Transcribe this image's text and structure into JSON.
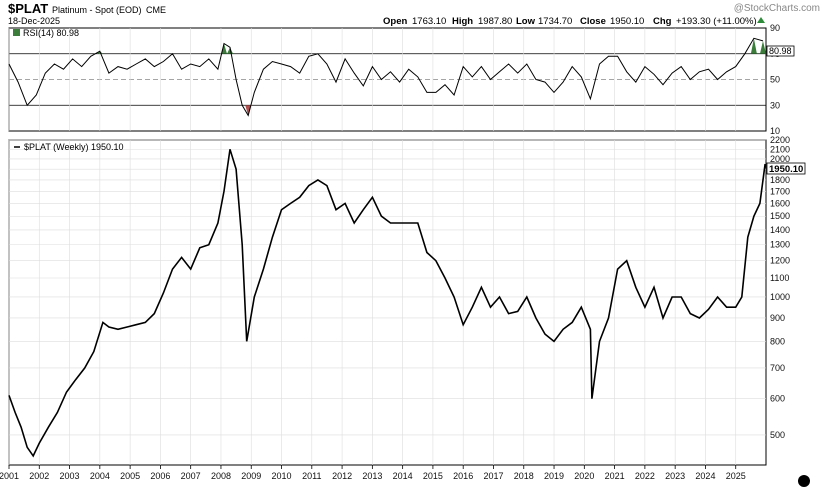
{
  "header": {
    "symbol": "$PLAT",
    "name": "Platinum - Spot (EOD)",
    "exchange": "CME",
    "date": "18-Dec-2025",
    "open_label": "Open",
    "open": "1763.10",
    "high_label": "High",
    "high": "1987.80",
    "low_label": "Low",
    "low": "1734.70",
    "close_label": "Close",
    "close": "1950.10",
    "chg_label": "Chg",
    "chg": "+193.30 (+11.00%)",
    "watermark": "@StockCharts.com"
  },
  "rsi_panel": {
    "legend": "RSI(14) 80.98",
    "last_value_label": "80.98",
    "overbought": 70,
    "oversold": 30,
    "midline": 50
  },
  "price_panel": {
    "legend": "$PLAT (Weekly) 1950.10",
    "last_value_label": "1950.10"
  },
  "colors": {
    "line": "#000000",
    "overbought_fill": "#3c7d3c",
    "oversold_fill": "#b05050",
    "grid": "#dddddd",
    "border": "#000000"
  },
  "chart_data": [
    {
      "type": "line",
      "title": "RSI(14)",
      "scale": "linear",
      "ylim": [
        10,
        90
      ],
      "y_ticks": [
        10,
        30,
        50,
        70,
        90
      ],
      "tick_labels": [
        "10",
        "30",
        "50",
        "70",
        "90"
      ],
      "series": [
        {
          "name": "RSI(14)",
          "x": [
            2001.0,
            2001.3,
            2001.6,
            2001.9,
            2002.2,
            2002.5,
            2002.8,
            2003.1,
            2003.4,
            2003.7,
            2004.0,
            2004.3,
            2004.6,
            2004.9,
            2005.2,
            2005.5,
            2005.8,
            2006.1,
            2006.4,
            2006.7,
            2007.0,
            2007.3,
            2007.6,
            2007.9,
            2008.1,
            2008.3,
            2008.5,
            2008.7,
            2008.9,
            2009.1,
            2009.4,
            2009.7,
            2010.0,
            2010.3,
            2010.6,
            2010.9,
            2011.2,
            2011.5,
            2011.8,
            2012.1,
            2012.4,
            2012.7,
            2013.0,
            2013.3,
            2013.6,
            2013.9,
            2014.2,
            2014.5,
            2014.8,
            2015.1,
            2015.4,
            2015.7,
            2016.0,
            2016.3,
            2016.6,
            2016.9,
            2017.2,
            2017.5,
            2017.8,
            2018.1,
            2018.4,
            2018.7,
            2019.0,
            2019.3,
            2019.6,
            2019.9,
            2020.2,
            2020.5,
            2020.8,
            2021.1,
            2021.4,
            2021.7,
            2022.0,
            2022.3,
            2022.6,
            2022.9,
            2023.2,
            2023.5,
            2023.8,
            2024.1,
            2024.4,
            2024.7,
            2025.0,
            2025.3,
            2025.6,
            2025.9
          ],
          "values": [
            62,
            48,
            30,
            38,
            55,
            62,
            58,
            66,
            60,
            68,
            72,
            55,
            60,
            58,
            62,
            66,
            60,
            64,
            70,
            58,
            62,
            60,
            66,
            58,
            78,
            75,
            50,
            30,
            22,
            40,
            58,
            64,
            62,
            60,
            55,
            68,
            70,
            62,
            48,
            66,
            55,
            45,
            60,
            50,
            56,
            48,
            58,
            52,
            40,
            40,
            46,
            38,
            60,
            52,
            60,
            50,
            56,
            62,
            55,
            62,
            50,
            48,
            40,
            48,
            60,
            52,
            35,
            62,
            68,
            68,
            56,
            48,
            60,
            54,
            46,
            55,
            60,
            50,
            56,
            58,
            50,
            56,
            60,
            70,
            82,
            80
          ]
        }
      ]
    },
    {
      "type": "line",
      "title": "$PLAT (Weekly)",
      "scale": "log",
      "ylim": [
        430,
        2200
      ],
      "y_ticks": [
        500,
        600,
        700,
        800,
        900,
        1000,
        1100,
        1200,
        1300,
        1400,
        1500,
        1600,
        1700,
        1800,
        1900,
        2000,
        2100,
        2200
      ],
      "tick_labels": [
        "500",
        "600",
        "700",
        "800",
        "900",
        "1000",
        "1100",
        "1200",
        "1300",
        "1400",
        "1500",
        "1600",
        "1700",
        "1800",
        "1900",
        "2000",
        "2100",
        "2200"
      ],
      "x_ticks": [
        2001,
        2002,
        2003,
        2004,
        2005,
        2006,
        2007,
        2008,
        2009,
        2010,
        2011,
        2012,
        2013,
        2014,
        2015,
        2016,
        2017,
        2018,
        2019,
        2020,
        2021,
        2022,
        2023,
        2024,
        2025
      ],
      "x_tick_labels": [
        "2001",
        "2002",
        "2003",
        "2004",
        "2005",
        "2006",
        "2007",
        "2008",
        "2009",
        "2010",
        "2011",
        "2012",
        "2013",
        "2014",
        "2015",
        "2016",
        "2017",
        "2018",
        "2019",
        "2020",
        "2021",
        "2022",
        "2023",
        "2024",
        "2025"
      ],
      "series": [
        {
          "name": "$PLAT (Weekly)",
          "x": [
            2001.0,
            2001.2,
            2001.4,
            2001.6,
            2001.8,
            2002.0,
            2002.3,
            2002.6,
            2002.9,
            2003.2,
            2003.5,
            2003.8,
            2004.1,
            2004.3,
            2004.6,
            2004.9,
            2005.2,
            2005.5,
            2005.8,
            2006.1,
            2006.4,
            2006.7,
            2007.0,
            2007.3,
            2007.6,
            2007.9,
            2008.1,
            2008.3,
            2008.5,
            2008.7,
            2008.85,
            2009.1,
            2009.4,
            2009.7,
            2010.0,
            2010.3,
            2010.6,
            2010.9,
            2011.2,
            2011.5,
            2011.8,
            2012.1,
            2012.4,
            2012.7,
            2013.0,
            2013.3,
            2013.6,
            2013.9,
            2014.2,
            2014.5,
            2014.8,
            2015.1,
            2015.4,
            2015.7,
            2016.0,
            2016.3,
            2016.6,
            2016.9,
            2017.2,
            2017.5,
            2017.8,
            2018.1,
            2018.4,
            2018.7,
            2019.0,
            2019.3,
            2019.6,
            2019.9,
            2020.2,
            2020.25,
            2020.5,
            2020.8,
            2021.1,
            2021.4,
            2021.7,
            2022.0,
            2022.3,
            2022.6,
            2022.9,
            2023.2,
            2023.5,
            2023.8,
            2024.1,
            2024.4,
            2024.7,
            2025.0,
            2025.2,
            2025.4,
            2025.6,
            2025.8,
            2025.97
          ],
          "values": [
            610,
            560,
            520,
            470,
            450,
            480,
            520,
            560,
            620,
            660,
            700,
            760,
            880,
            860,
            850,
            860,
            870,
            880,
            920,
            1020,
            1150,
            1220,
            1150,
            1280,
            1300,
            1450,
            1700,
            2100,
            1900,
            1300,
            800,
            1000,
            1150,
            1350,
            1550,
            1600,
            1650,
            1750,
            1800,
            1750,
            1550,
            1600,
            1450,
            1550,
            1650,
            1500,
            1450,
            1450,
            1450,
            1450,
            1250,
            1200,
            1100,
            1000,
            870,
            950,
            1050,
            950,
            1000,
            920,
            930,
            1000,
            900,
            830,
            800,
            850,
            880,
            950,
            850,
            600,
            800,
            900,
            1150,
            1200,
            1050,
            950,
            1050,
            900,
            1000,
            1000,
            920,
            900,
            940,
            1000,
            950,
            950,
            1000,
            1350,
            1500,
            1600,
            1950
          ]
        }
      ]
    }
  ]
}
